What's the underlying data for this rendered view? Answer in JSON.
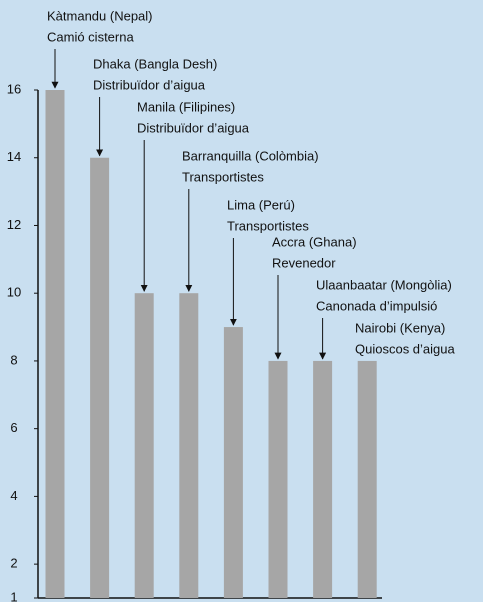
{
  "chart_data": {
    "type": "bar",
    "categories": [
      "Kàtmandu (Nepal)",
      "Dhaka (Bangla Desh)",
      "Manila (Filipines)",
      "Barranquilla (Colòmbia)",
      "Lima (Perú)",
      "Accra (Ghana)",
      "Ulaanbaatar (Mongòlia)",
      "Nairobi (Kenya)"
    ],
    "subcategories": [
      "Camió cisterna",
      "Distribuïdor d’aigua",
      "Distribuïdor d’aigua",
      "Transportistes",
      "Transportistes",
      "Revenedor",
      "Canonada d’impulsió",
      "Quioscos d’aigua"
    ],
    "values": [
      16,
      14,
      10,
      10,
      9,
      8,
      8,
      8
    ],
    "color": "#a6a6a6",
    "ylim": [
      1,
      16
    ],
    "yticks": [
      1,
      2,
      4,
      6,
      8,
      10,
      12,
      14,
      16
    ]
  }
}
